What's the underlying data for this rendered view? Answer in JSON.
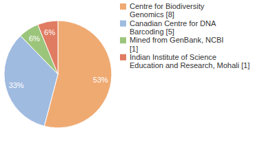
{
  "chart_data": {
    "type": "pie",
    "categories": [
      "Centre for Biodiversity Genomics [8]",
      "Canadian Centre for DNA Barcoding [5]",
      "Mined from GenBank, NCBI [1]",
      "Indian Institute of Science Education and Research, Mohali [1]"
    ],
    "values": [
      53,
      33,
      6,
      6
    ],
    "value_labels": [
      "53%",
      "33%",
      "6%",
      "6%"
    ],
    "colors": [
      "#efaa72",
      "#a0bbe0",
      "#9cc57c",
      "#e07c62"
    ],
    "data_labels": true,
    "legend": "right"
  }
}
